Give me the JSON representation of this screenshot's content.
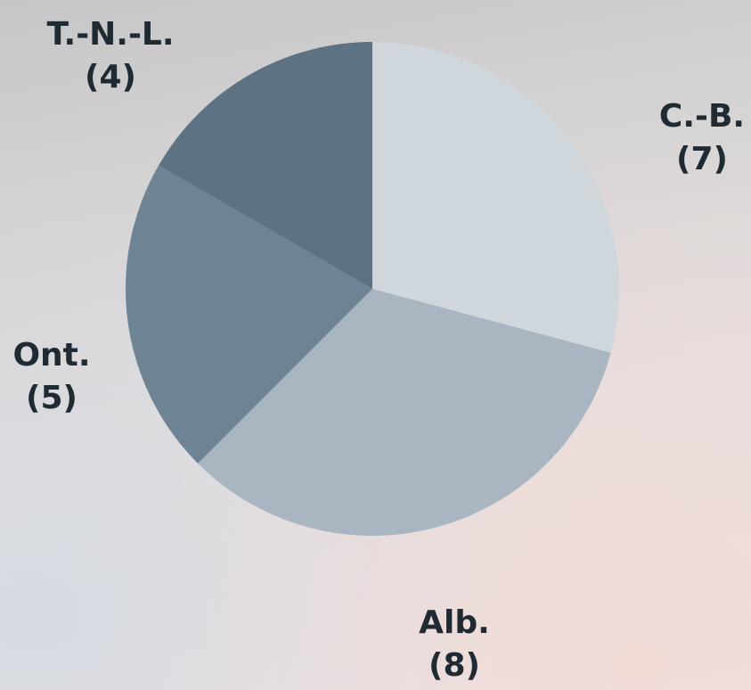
{
  "chart_data": {
    "type": "pie",
    "categories": [
      "C.-B.",
      "Alb.",
      "Ont.",
      "T.-N.-L."
    ],
    "values": [
      7,
      8,
      5,
      4
    ],
    "labels": [
      {
        "name": "C.-B.",
        "count": "(7)"
      },
      {
        "name": "Alb.",
        "count": "(8)"
      },
      {
        "name": "Ont.",
        "count": "(5)"
      },
      {
        "name": "T.-N.-L.",
        "count": "(4)"
      }
    ],
    "colors": [
      "#cfd6dc",
      "#a9b6c1",
      "#6e8494",
      "#5d7282"
    ],
    "start_angle": "12 o'clock",
    "direction": "clockwise"
  }
}
